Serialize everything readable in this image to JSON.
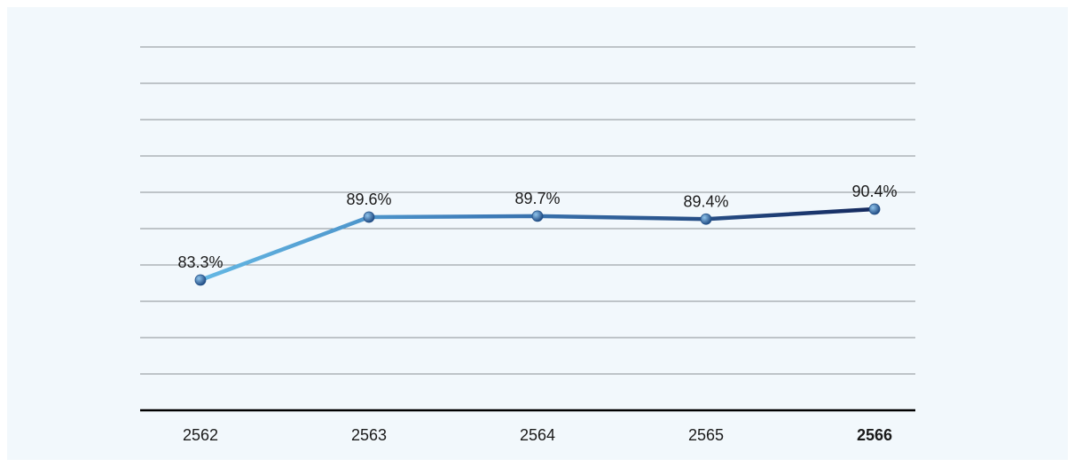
{
  "chart_data": {
    "type": "line",
    "title": "",
    "xlabel": "",
    "ylabel": "",
    "categories": [
      "2562",
      "2563",
      "2564",
      "2565",
      "2566"
    ],
    "highlight_category": "2566",
    "series": [
      {
        "values": [
          83.3,
          89.6,
          89.7,
          89.4,
          90.4
        ],
        "labels": [
          "83.3%",
          "89.6%",
          "89.7%",
          "89.4%",
          "90.4%"
        ]
      }
    ],
    "grid": true,
    "legend": "none",
    "colors": {
      "line_start": "#64b8e4",
      "line_end": "#14295e",
      "marker": "#2f6aa8",
      "grid": "#8a8f94",
      "background": "#f2f8fc"
    }
  }
}
